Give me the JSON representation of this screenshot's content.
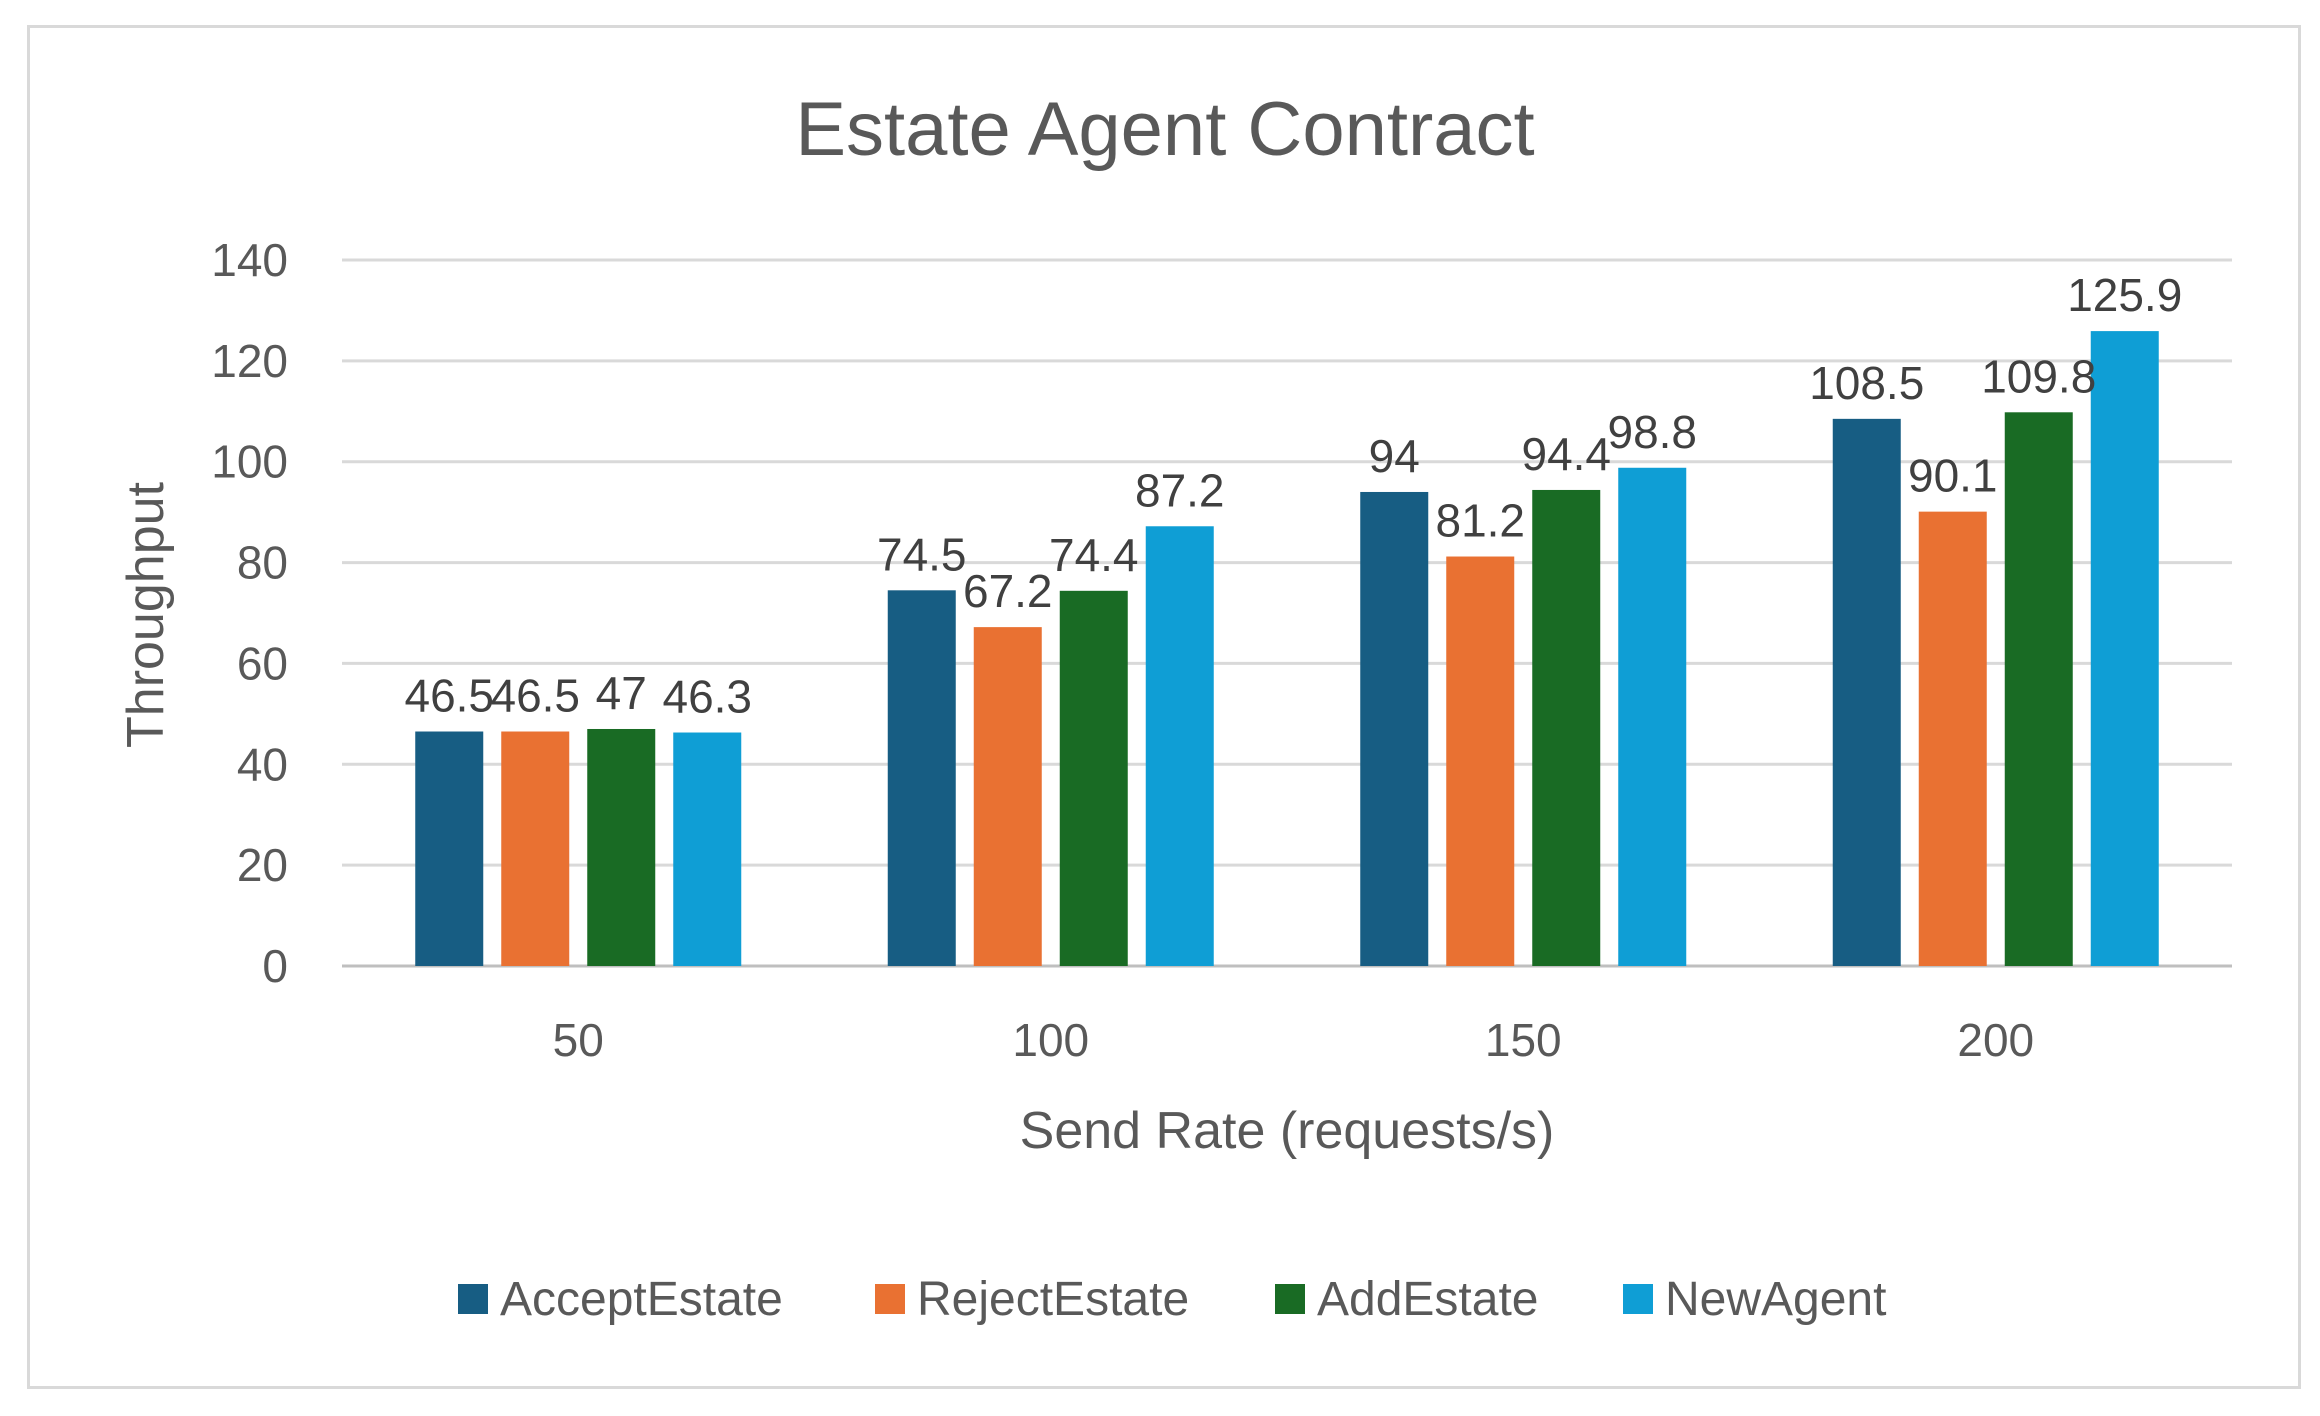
{
  "chart_data": {
    "type": "bar",
    "title": "Estate Agent Contract",
    "xlabel": "Send Rate (requests/s)",
    "ylabel": "Throughput",
    "categories": [
      "50",
      "100",
      "150",
      "200"
    ],
    "ylim": [
      0,
      140
    ],
    "yticks": [
      "0",
      "20",
      "40",
      "60",
      "80",
      "100",
      "120",
      "140"
    ],
    "grid": true,
    "legend_position": "bottom",
    "series": [
      {
        "name": "AcceptEstate",
        "color": "#175d83",
        "values": [
          46.5,
          74.5,
          94,
          108.5
        ],
        "labels": [
          "46.5",
          "74.5",
          "94",
          "108.5"
        ]
      },
      {
        "name": "RejectEstate",
        "color": "#e97132",
        "values": [
          46.5,
          67.2,
          81.2,
          90.1
        ],
        "labels": [
          "46.5",
          "67.2",
          "81.2",
          "90.1"
        ]
      },
      {
        "name": "AddEstate",
        "color": "#196b24",
        "values": [
          47,
          74.4,
          94.4,
          109.8
        ],
        "labels": [
          "47",
          "74.4",
          "94.4",
          "109.8"
        ]
      },
      {
        "name": "NewAgent",
        "color": "#0f9ed5",
        "values": [
          46.3,
          87.2,
          98.8,
          125.9
        ],
        "labels": [
          "46.3",
          "87.2",
          "98.8",
          "125.9"
        ]
      }
    ]
  }
}
